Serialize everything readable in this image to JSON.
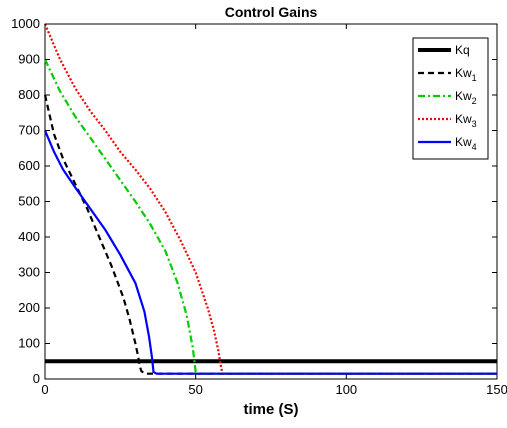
{
  "chart_data": {
    "type": "line",
    "title": "Control Gains",
    "xlabel": "time (S)",
    "ylabel": "",
    "xlim": [
      0,
      150
    ],
    "ylim": [
      0,
      1000
    ],
    "xticks": [
      0,
      50,
      100,
      150
    ],
    "yticks": [
      0,
      100,
      200,
      300,
      400,
      500,
      600,
      700,
      800,
      900,
      1000
    ],
    "grid": false,
    "legend_position": "top-right",
    "series": [
      {
        "name": "Kq",
        "name_base": "Kq",
        "name_sub": "",
        "color": "#000000",
        "style": "solid",
        "x": [
          0,
          150
        ],
        "y": [
          50,
          50
        ]
      },
      {
        "name": "Kw1",
        "name_base": "Kw",
        "name_sub": "1",
        "color": "#000000",
        "style": "dashed",
        "x": [
          0,
          3,
          6,
          10,
          14,
          18,
          22,
          26,
          28,
          30,
          31,
          31.5,
          32,
          33,
          34,
          40,
          150
        ],
        "y": [
          800,
          690,
          620,
          550,
          480,
          400,
          320,
          230,
          170,
          100,
          60,
          35,
          22,
          16,
          15,
          15,
          15
        ]
      },
      {
        "name": "Kw2",
        "name_base": "Kw",
        "name_sub": "2",
        "color": "#00cc00",
        "style": "dashdot",
        "x": [
          0,
          5,
          10,
          15,
          20,
          25,
          30,
          35,
          40,
          44,
          47,
          49,
          50,
          51,
          55,
          150
        ],
        "y": [
          900,
          810,
          740,
          680,
          620,
          560,
          500,
          435,
          360,
          270,
          180,
          90,
          20,
          15,
          15,
          15
        ]
      },
      {
        "name": "Kw3",
        "name_base": "Kw",
        "name_sub": "3",
        "color": "#ff0000",
        "style": "dotted",
        "x": [
          0,
          5,
          10,
          15,
          20,
          25,
          30,
          35,
          40,
          45,
          50,
          54,
          56,
          57.5,
          58.5,
          59,
          60,
          150
        ],
        "y": [
          1000,
          900,
          820,
          755,
          700,
          640,
          590,
          535,
          470,
          390,
          300,
          200,
          140,
          80,
          30,
          15,
          15,
          15
        ]
      },
      {
        "name": "Kw4",
        "name_base": "Kw",
        "name_sub": "4",
        "color": "#0000ff",
        "style": "solid",
        "x": [
          0,
          3,
          6,
          10,
          15,
          20,
          25,
          30,
          33,
          34.5,
          35.5,
          36,
          37,
          40,
          150
        ],
        "y": [
          700,
          640,
          590,
          540,
          480,
          420,
          350,
          270,
          190,
          120,
          60,
          20,
          15,
          15,
          15
        ]
      }
    ]
  }
}
